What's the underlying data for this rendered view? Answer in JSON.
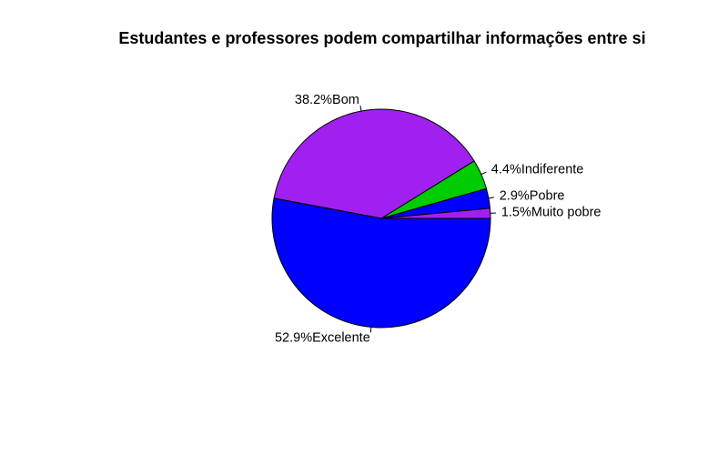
{
  "chart_data": {
    "type": "pie",
    "title": "Estudantes e professores podem compartilhar informações entre si",
    "direction": "counterclockwise",
    "start": "3 o'clock",
    "slices": [
      {
        "label": "1.5%Muito pobre",
        "value": 1.5,
        "color": "#A020F0"
      },
      {
        "label": "2.9%Pobre",
        "value": 2.9,
        "color": "#0000FF"
      },
      {
        "label": "4.4%Indiferente",
        "value": 4.4,
        "color": "#00CD00"
      },
      {
        "label": "38.2%Bom",
        "value": 38.2,
        "color": "#A020F0"
      },
      {
        "label": "52.9%Excelente",
        "value": 52.9,
        "color": "#0000FF"
      }
    ]
  }
}
